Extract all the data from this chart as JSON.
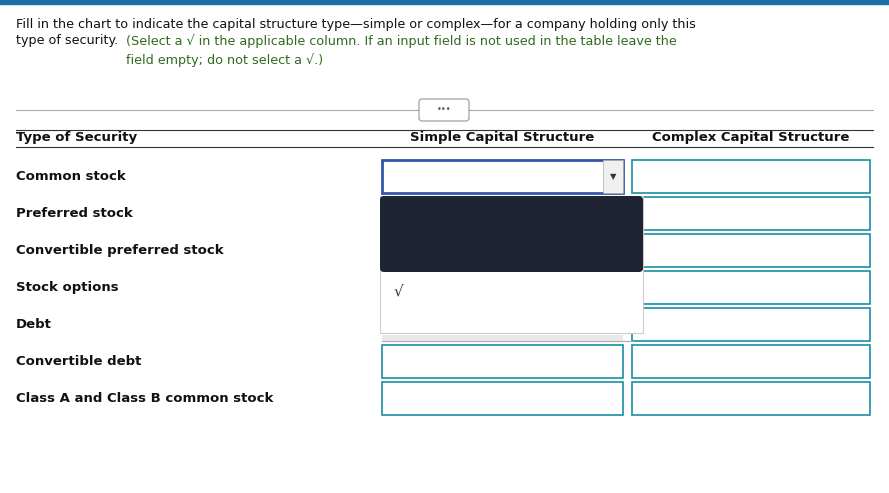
{
  "title_line1": "Fill in the chart to indicate the capital structure type—simple or complex—for a company holding only this",
  "title_line2": "type of security.",
  "green_text": "(Select a √ in the applicable column. If an input field is not used in the table leave the\nfield empty; do not select a √.)",
  "header_col0": "Type of Security",
  "header_col1": "Simple Capital Structure",
  "header_col2": "Complex Capital Structure",
  "rows": [
    "Common stock",
    "Preferred stock",
    "Convertible preferred stock",
    "Stock options",
    "Debt",
    "Convertible debt",
    "Class A and Class B common stock"
  ],
  "bg_color": "#ffffff",
  "top_bar_color": "#1a6fa3",
  "cell_border_color": "#1a8fa3",
  "dropdown_border_color": "#3355aa",
  "dark_box_color": "#1e2433",
  "fig_width": 8.89,
  "fig_height": 4.93,
  "dpi": 100
}
